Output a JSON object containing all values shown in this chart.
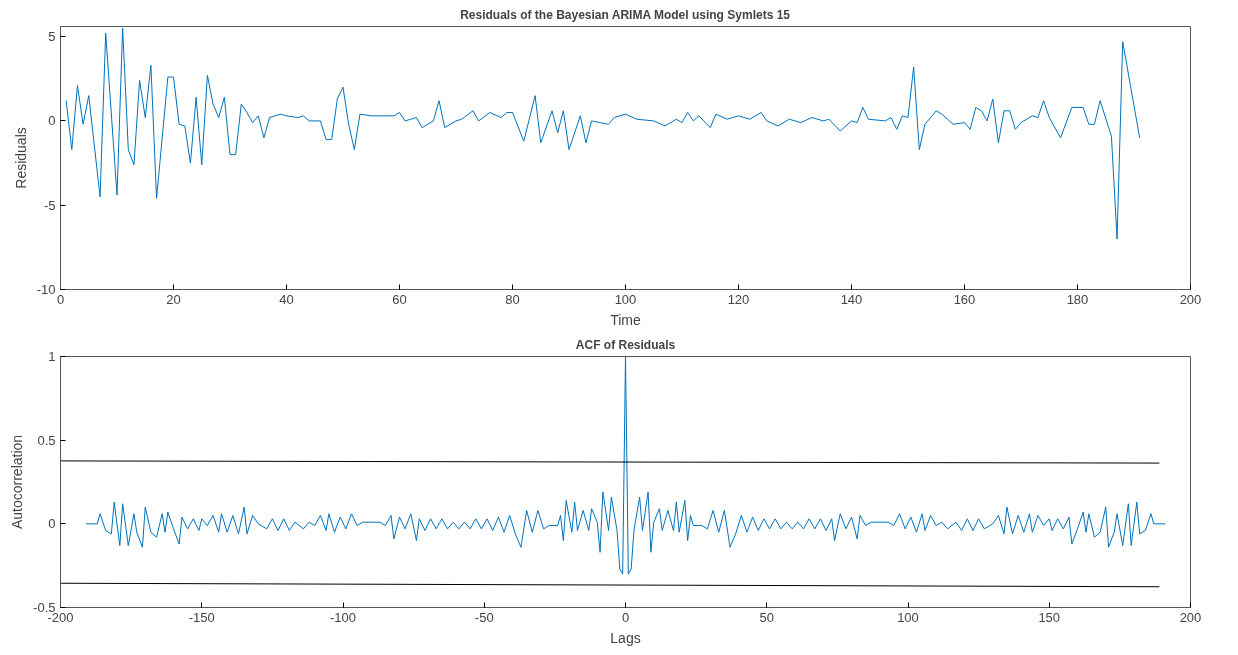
{
  "chart_data": [
    {
      "type": "line",
      "title": "Residuals of the Bayesian ARIMA Model using Symlets 15",
      "xlabel": "Time",
      "ylabel": "Residuals",
      "color": "#0072bd",
      "grid": false,
      "marker": "none",
      "line_style": "solid",
      "x": [
        1,
        2,
        3,
        4,
        5,
        7,
        8,
        10,
        11,
        12,
        13,
        14,
        15,
        16,
        17,
        19,
        20,
        21,
        22,
        23,
        24,
        25,
        26,
        27,
        28,
        29,
        30,
        31,
        32,
        33,
        34,
        35,
        36,
        37,
        39,
        40,
        42,
        43,
        44,
        46,
        47,
        48,
        49,
        50,
        51,
        52,
        53,
        55,
        58,
        59,
        60,
        61,
        62,
        63,
        64,
        66,
        67,
        68,
        70,
        71,
        73,
        74,
        76,
        78,
        79,
        80,
        82,
        84,
        85,
        87,
        88,
        89,
        90,
        92,
        93,
        94,
        97,
        98,
        100,
        102,
        105,
        107,
        109,
        110,
        111,
        112,
        113,
        115,
        116,
        118,
        120,
        122,
        124,
        125,
        127,
        129,
        131,
        133,
        135,
        136,
        138,
        140,
        141,
        142,
        143,
        146,
        147,
        148,
        149,
        150,
        151,
        152,
        153,
        155,
        156,
        158,
        160,
        161,
        162,
        163,
        164,
        165,
        166,
        167,
        168,
        169,
        170,
        172,
        173,
        174,
        175,
        177,
        179,
        181,
        182,
        183,
        184,
        186,
        187,
        188,
        191
      ],
      "values": [
        1.2,
        -1.7,
        2.1,
        -0.2,
        1.5,
        -4.5,
        5.2,
        -4.4,
        5.5,
        -1.7,
        -2.6,
        2.4,
        0.2,
        3.3,
        -4.6,
        2.6,
        2.6,
        -0.2,
        -0.3,
        -2.5,
        1.4,
        -2.6,
        2.7,
        1.0,
        0.2,
        1.4,
        -2.0,
        -2.0,
        1.0,
        0.5,
        -0.1,
        0.3,
        -1.0,
        0.2,
        0.4,
        0.3,
        0.2,
        0.3,
        0,
        0,
        -1.1,
        -1.1,
        1.3,
        2.0,
        -0.2,
        -1.7,
        0.4,
        0.3,
        0.3,
        0.3,
        0.5,
        0,
        0.1,
        0.2,
        -0.4,
        0,
        1.2,
        -0.4,
        0,
        0.1,
        0.6,
        0,
        0.5,
        0.2,
        0.5,
        0.5,
        -1.2,
        1.5,
        -1.3,
        0.6,
        -0.7,
        0.6,
        -1.7,
        0.3,
        -1.3,
        0,
        -0.2,
        0.2,
        0.4,
        0.1,
        0,
        -0.3,
        0.1,
        -0.1,
        0.5,
        0,
        0.3,
        -0.4,
        0.4,
        0.1,
        0.3,
        0.1,
        0.5,
        0,
        -0.3,
        0.1,
        -0.1,
        0.2,
        0,
        0.1,
        -0.6,
        0,
        -0.1,
        0.8,
        0.1,
        0,
        0.2,
        -0.5,
        0.3,
        0.2,
        3.2,
        -1.7,
        -0.2,
        0.6,
        0.4,
        -0.2,
        -0.1,
        -0.5,
        0.8,
        0.6,
        0,
        1.3,
        -1.3,
        0.6,
        0.6,
        -0.5,
        -0.1,
        0.3,
        0.2,
        1.2,
        0.2,
        -1.0,
        0.8,
        0.8,
        -0.2,
        -0.2,
        1.2,
        -0.9,
        -7.0,
        4.7,
        -1.0
      ],
      "xlim": [
        0,
        200
      ],
      "ylim": [
        -10,
        5.6
      ],
      "xticks": [
        0,
        20,
        40,
        60,
        80,
        100,
        120,
        140,
        160,
        180,
        200
      ],
      "yticks": [
        -10,
        -5,
        0,
        5
      ]
    },
    {
      "type": "line",
      "title": "ACF of Residuals",
      "xlabel": "Lags",
      "ylabel": "Autocorrelation",
      "grid": false,
      "marker": "none",
      "line_style": "solid",
      "series": [
        {
          "color": "#0072bd",
          "x": [
            -191,
            -187,
            -186,
            -184,
            -182,
            -181,
            -179,
            -178,
            -176,
            -174,
            -173,
            -171,
            -170,
            -168,
            -166,
            -164,
            -163,
            -162,
            -160,
            -158,
            -157,
            -155,
            -153,
            -151,
            -150,
            -148,
            -146,
            -144,
            -143,
            -141,
            -139,
            -137,
            -135,
            -134,
            -132,
            -130,
            -127,
            -125,
            -123,
            -121,
            -119,
            -117,
            -114,
            -112,
            -110,
            -108,
            -106,
            -105,
            -103,
            -101,
            -99,
            -97,
            -95,
            -93,
            -87,
            -85,
            -83,
            -82,
            -80,
            -78,
            -76,
            -74,
            -73,
            -71,
            -69,
            -67,
            -65,
            -63,
            -61,
            -59,
            -57,
            -55,
            -53,
            -51,
            -49,
            -47,
            -45,
            -43,
            -41,
            -39,
            -37,
            -35,
            -33,
            -31,
            -29,
            -27,
            -24,
            -23,
            -22,
            -21,
            -19,
            -18,
            -17,
            -15,
            -13,
            -12,
            -10,
            -9,
            -8,
            -6,
            -5,
            -3,
            -2,
            -1,
            0,
            1,
            2,
            3,
            5,
            6,
            8,
            9,
            10,
            12,
            13,
            15,
            17,
            18,
            19,
            21,
            22,
            23,
            24,
            27,
            29,
            31,
            33,
            35,
            37,
            39,
            41,
            43,
            45,
            47,
            49,
            51,
            53,
            55,
            57,
            59,
            61,
            63,
            65,
            67,
            69,
            71,
            73,
            74,
            76,
            78,
            80,
            82,
            83,
            85,
            87,
            93,
            95,
            97,
            99,
            101,
            103,
            105,
            106,
            108,
            110,
            112,
            114,
            117,
            119,
            121,
            123,
            125,
            127,
            130,
            132,
            134,
            135,
            137,
            139,
            141,
            143,
            144,
            146,
            148,
            150,
            151,
            153,
            155,
            157,
            158,
            160,
            162,
            163,
            164,
            166,
            168,
            170,
            171,
            173,
            174,
            176,
            178,
            179,
            181,
            182,
            184,
            186,
            187,
            191
          ],
          "values": [
            0,
            0,
            0.06,
            -0.04,
            -0.06,
            0.13,
            -0.13,
            0.12,
            -0.13,
            0.06,
            -0.05,
            -0.14,
            0.1,
            -0.05,
            -0.08,
            0.06,
            -0.05,
            0.07,
            -0.03,
            -0.12,
            0.04,
            -0.03,
            0.03,
            -0.04,
            0.03,
            -0.01,
            0.05,
            -0.05,
            0.06,
            -0.05,
            0.05,
            -0.06,
            0.1,
            -0.06,
            0.05,
            0,
            -0.03,
            0.03,
            -0.04,
            0.03,
            -0.04,
            0.01,
            -0.03,
            0.01,
            -0.01,
            0.05,
            -0.04,
            0.06,
            -0.05,
            0.04,
            -0.03,
            0.06,
            -0.01,
            0.01,
            0.01,
            -0.01,
            0.05,
            -0.09,
            0.04,
            -0.03,
            0.06,
            -0.1,
            0.03,
            -0.04,
            0.03,
            -0.03,
            0.03,
            -0.03,
            0.01,
            -0.03,
            0.01,
            -0.03,
            0.03,
            -0.03,
            0.03,
            -0.04,
            0.04,
            -0.05,
            0.05,
            -0.06,
            -0.14,
            0.08,
            -0.05,
            0.08,
            -0.03,
            -0.01,
            -0.01,
            0.05,
            -0.1,
            0.14,
            -0.05,
            0.13,
            -0.04,
            0.08,
            -0.04,
            0.09,
            0.01,
            -0.17,
            0.19,
            -0.04,
            0.16,
            -0.04,
            -0.27,
            -0.3,
            1,
            -0.3,
            -0.27,
            -0.04,
            0.16,
            -0.04,
            0.19,
            -0.17,
            0.01,
            0.09,
            -0.04,
            0.08,
            -0.04,
            0.13,
            -0.05,
            0.14,
            -0.1,
            0.05,
            -0.01,
            -0.01,
            -0.03,
            0.08,
            -0.05,
            0.08,
            -0.14,
            -0.06,
            0.05,
            -0.05,
            0.04,
            -0.04,
            0.03,
            -0.03,
            0.03,
            -0.03,
            0.01,
            -0.03,
            0.01,
            -0.03,
            0.03,
            -0.03,
            0.03,
            -0.04,
            0.03,
            -0.1,
            0.06,
            -0.03,
            0.04,
            -0.09,
            0.05,
            -0.01,
            0.01,
            0.01,
            -0.01,
            0.06,
            -0.03,
            0.04,
            -0.05,
            0.06,
            -0.04,
            0.05,
            -0.01,
            0.01,
            -0.03,
            0.01,
            -0.04,
            0.03,
            -0.04,
            0.03,
            -0.03,
            0,
            0.05,
            -0.06,
            0.1,
            -0.06,
            0.05,
            -0.05,
            0.06,
            -0.05,
            0.05,
            -0.01,
            0.03,
            -0.04,
            0.03,
            -0.03,
            0.04,
            -0.12,
            -0.03,
            0.07,
            -0.05,
            0.06,
            -0.08,
            -0.05,
            0.1,
            -0.14,
            -0.05,
            0.06,
            -0.13,
            0.12,
            -0.13,
            0.13,
            -0.06,
            -0.04,
            0.06,
            0,
            0
          ]
        },
        {
          "color": "#000000",
          "x": [
            -200,
            189
          ],
          "values": [
            0.376,
            0.363
          ]
        },
        {
          "color": "#000000",
          "x": [
            -200,
            189
          ],
          "values": [
            -0.355,
            -0.376
          ]
        }
      ],
      "xlim": [
        -200,
        200
      ],
      "ylim": [
        -0.5,
        1
      ],
      "xticks": [
        -200,
        -150,
        -100,
        -50,
        0,
        50,
        100,
        150,
        200
      ],
      "yticks": [
        -0.5,
        0,
        0.5,
        1
      ]
    }
  ]
}
